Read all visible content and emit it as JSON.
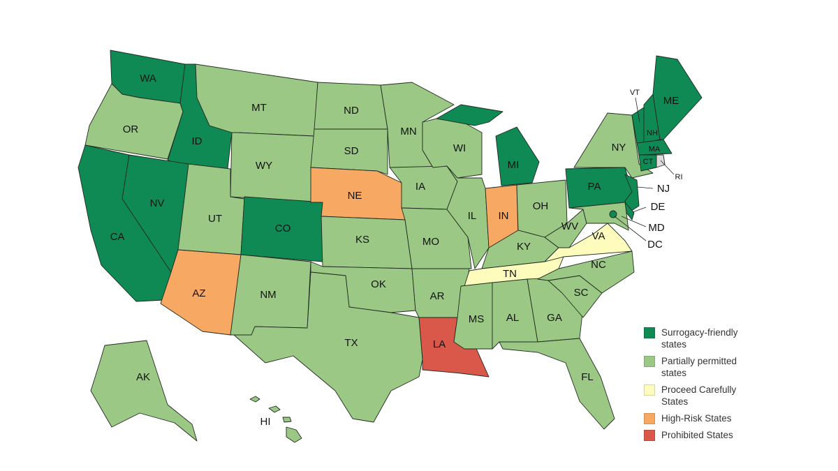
{
  "legend": [
    {
      "label": "Surrogacy-friendly states",
      "color": "#0f8a55"
    },
    {
      "label": "Partially permitted states",
      "color": "#9bc985"
    },
    {
      "label": "Proceed Carefully States",
      "color": "#fefcbd"
    },
    {
      "label": "High-Risk States",
      "color": "#f7a862"
    },
    {
      "label": "Prohibited States",
      "color": "#d9584a"
    }
  ],
  "no_category_color": "#dcdcdc",
  "states": [
    {
      "label": "WA",
      "category": 0
    },
    {
      "label": "OR",
      "category": 1
    },
    {
      "label": "ID",
      "category": 0
    },
    {
      "label": "MT",
      "category": 1
    },
    {
      "label": "WY",
      "category": 1
    },
    {
      "label": "CA",
      "category": 0
    },
    {
      "label": "NV",
      "category": 0
    },
    {
      "label": "UT",
      "category": 1
    },
    {
      "label": "AZ",
      "category": 3
    },
    {
      "label": "CO",
      "category": 0
    },
    {
      "label": "NM",
      "category": 1
    },
    {
      "label": "ND",
      "category": 1
    },
    {
      "label": "SD",
      "category": 1
    },
    {
      "label": "NE",
      "category": 3
    },
    {
      "label": "KS",
      "category": 1
    },
    {
      "label": "OK",
      "category": 1
    },
    {
      "label": "TX",
      "category": 1
    },
    {
      "label": "MN",
      "category": 1
    },
    {
      "label": "IA",
      "category": 1
    },
    {
      "label": "MO",
      "category": 1
    },
    {
      "label": "AR",
      "category": 1
    },
    {
      "label": "LA",
      "category": 4
    },
    {
      "label": "WI",
      "category": 1
    },
    {
      "label": "IL",
      "category": 1
    },
    {
      "label": "MI",
      "category": 0
    },
    {
      "label": "IN",
      "category": 3
    },
    {
      "label": "OH",
      "category": 1
    },
    {
      "label": "KY",
      "category": 1
    },
    {
      "label": "TN",
      "category": 2
    },
    {
      "label": "MS",
      "category": 1
    },
    {
      "label": "AL",
      "category": 1
    },
    {
      "label": "GA",
      "category": 1
    },
    {
      "label": "FL",
      "category": 1
    },
    {
      "label": "SC",
      "category": 1
    },
    {
      "label": "NC",
      "category": 1
    },
    {
      "label": "VA",
      "category": 2
    },
    {
      "label": "WV",
      "category": 1
    },
    {
      "label": "PA",
      "category": 0
    },
    {
      "label": "NY",
      "category": 1
    },
    {
      "label": "NJ",
      "category": 0
    },
    {
      "label": "DE",
      "category": 0
    },
    {
      "label": "MD",
      "category": 1
    },
    {
      "label": "DC",
      "category": 0
    },
    {
      "label": "VT",
      "category": 0
    },
    {
      "label": "NH",
      "category": 0
    },
    {
      "label": "ME",
      "category": 0
    },
    {
      "label": "MA",
      "category": 0
    },
    {
      "label": "CT",
      "category": 0
    },
    {
      "label": "RI",
      "category": null
    },
    {
      "label": "AK",
      "category": 1
    },
    {
      "label": "HI",
      "category": 1
    }
  ]
}
